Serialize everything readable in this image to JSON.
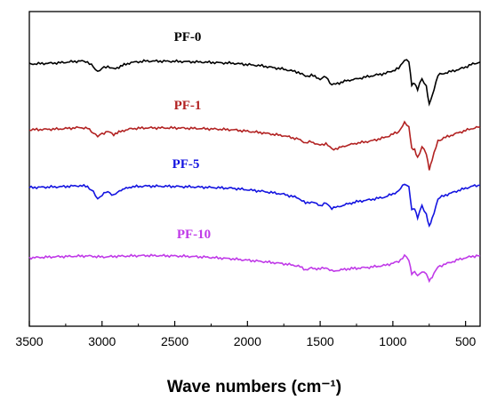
{
  "chart_data": {
    "type": "line",
    "title": "",
    "xlabel": "Wave numbers (cm⁻¹)",
    "ylabel": "",
    "xlim": [
      3500,
      400
    ],
    "x_reversed": true,
    "x_ticks": [
      3500,
      3000,
      2500,
      2000,
      1500,
      1000,
      500
    ],
    "y_ticks": false,
    "grid": false,
    "legend": "inline labels above each curve",
    "y_units": "relative transmittance (stacked offsets)",
    "series": [
      {
        "name": "PF-0",
        "color": "#000000",
        "points": [
          [
            3500,
            0.0
          ],
          [
            3300,
            0.03
          ],
          [
            3150,
            0.08
          ],
          [
            3100,
            0.06
          ],
          [
            3060,
            -0.08
          ],
          [
            3030,
            -0.2
          ],
          [
            3000,
            -0.12
          ],
          [
            2960,
            -0.06
          ],
          [
            2920,
            -0.14
          ],
          [
            2860,
            -0.04
          ],
          [
            2800,
            0.04
          ],
          [
            2700,
            0.08
          ],
          [
            2500,
            0.07
          ],
          [
            2300,
            0.05
          ],
          [
            2100,
            0.02
          ],
          [
            1900,
            -0.05
          ],
          [
            1750,
            -0.14
          ],
          [
            1650,
            -0.22
          ],
          [
            1600,
            -0.33
          ],
          [
            1560,
            -0.3
          ],
          [
            1500,
            -0.4
          ],
          [
            1460,
            -0.34
          ],
          [
            1420,
            -0.56
          ],
          [
            1380,
            -0.52
          ],
          [
            1320,
            -0.45
          ],
          [
            1250,
            -0.4
          ],
          [
            1150,
            -0.32
          ],
          [
            1050,
            -0.25
          ],
          [
            960,
            -0.12
          ],
          [
            920,
            0.12
          ],
          [
            890,
            0.05
          ],
          [
            870,
            -0.55
          ],
          [
            850,
            -0.5
          ],
          [
            830,
            -0.7
          ],
          [
            800,
            -0.38
          ],
          [
            770,
            -0.6
          ],
          [
            750,
            -1.1
          ],
          [
            730,
            -0.85
          ],
          [
            690,
            -0.3
          ],
          [
            650,
            -0.25
          ],
          [
            600,
            -0.2
          ],
          [
            550,
            -0.15
          ],
          [
            500,
            -0.08
          ],
          [
            450,
            0.0
          ],
          [
            400,
            0.05
          ]
        ]
      },
      {
        "name": "PF-1",
        "color": "#b22222",
        "points": [
          [
            3500,
            0.0
          ],
          [
            3300,
            0.02
          ],
          [
            3150,
            0.06
          ],
          [
            3100,
            0.04
          ],
          [
            3060,
            -0.08
          ],
          [
            3030,
            -0.18
          ],
          [
            3000,
            -0.1
          ],
          [
            2960,
            -0.05
          ],
          [
            2920,
            -0.12
          ],
          [
            2860,
            -0.03
          ],
          [
            2800,
            0.03
          ],
          [
            2700,
            0.05
          ],
          [
            2500,
            0.05
          ],
          [
            2300,
            0.03
          ],
          [
            2100,
            0.0
          ],
          [
            1900,
            -0.08
          ],
          [
            1750,
            -0.16
          ],
          [
            1650,
            -0.25
          ],
          [
            1600,
            -0.35
          ],
          [
            1560,
            -0.32
          ],
          [
            1500,
            -0.42
          ],
          [
            1460,
            -0.36
          ],
          [
            1420,
            -0.52
          ],
          [
            1380,
            -0.5
          ],
          [
            1320,
            -0.42
          ],
          [
            1250,
            -0.36
          ],
          [
            1150,
            -0.3
          ],
          [
            1050,
            -0.2
          ],
          [
            960,
            -0.05
          ],
          [
            920,
            0.18
          ],
          [
            890,
            0.1
          ],
          [
            870,
            -0.5
          ],
          [
            850,
            -0.55
          ],
          [
            830,
            -0.75
          ],
          [
            800,
            -0.45
          ],
          [
            770,
            -0.65
          ],
          [
            750,
            -1.05
          ],
          [
            730,
            -0.8
          ],
          [
            690,
            -0.3
          ],
          [
            650,
            -0.22
          ],
          [
            600,
            -0.15
          ],
          [
            550,
            -0.08
          ],
          [
            500,
            -0.02
          ],
          [
            450,
            0.04
          ],
          [
            400,
            0.08
          ]
        ]
      },
      {
        "name": "PF-5",
        "color": "#1414e0",
        "points": [
          [
            3500,
            0.0
          ],
          [
            3300,
            0.02
          ],
          [
            3150,
            0.05
          ],
          [
            3100,
            0.03
          ],
          [
            3060,
            -0.12
          ],
          [
            3030,
            -0.3
          ],
          [
            3000,
            -0.2
          ],
          [
            2960,
            -0.1
          ],
          [
            2920,
            -0.22
          ],
          [
            2880,
            -0.08
          ],
          [
            2800,
            0.02
          ],
          [
            2700,
            0.04
          ],
          [
            2500,
            0.03
          ],
          [
            2300,
            0.01
          ],
          [
            2100,
            -0.02
          ],
          [
            1900,
            -0.1
          ],
          [
            1750,
            -0.18
          ],
          [
            1650,
            -0.28
          ],
          [
            1600,
            -0.42
          ],
          [
            1560,
            -0.38
          ],
          [
            1500,
            -0.48
          ],
          [
            1460,
            -0.42
          ],
          [
            1420,
            -0.55
          ],
          [
            1380,
            -0.52
          ],
          [
            1320,
            -0.45
          ],
          [
            1250,
            -0.38
          ],
          [
            1150,
            -0.32
          ],
          [
            1050,
            -0.25
          ],
          [
            960,
            -0.1
          ],
          [
            920,
            0.12
          ],
          [
            890,
            0.0
          ],
          [
            870,
            -0.6
          ],
          [
            850,
            -0.55
          ],
          [
            830,
            -0.8
          ],
          [
            800,
            -0.5
          ],
          [
            770,
            -0.7
          ],
          [
            750,
            -1.05
          ],
          [
            730,
            -0.85
          ],
          [
            690,
            -0.3
          ],
          [
            650,
            -0.22
          ],
          [
            600,
            -0.15
          ],
          [
            550,
            -0.08
          ],
          [
            500,
            -0.02
          ],
          [
            450,
            0.04
          ],
          [
            400,
            0.06
          ]
        ]
      },
      {
        "name": "PF-10",
        "color": "#c03ae8",
        "points": [
          [
            3500,
            0.0
          ],
          [
            3300,
            0.03
          ],
          [
            3100,
            0.05
          ],
          [
            3000,
            0.02
          ],
          [
            2900,
            0.04
          ],
          [
            2800,
            0.05
          ],
          [
            2700,
            0.06
          ],
          [
            2500,
            0.05
          ],
          [
            2300,
            0.02
          ],
          [
            2100,
            -0.03
          ],
          [
            1900,
            -0.1
          ],
          [
            1750,
            -0.16
          ],
          [
            1650,
            -0.22
          ],
          [
            1600,
            -0.32
          ],
          [
            1560,
            -0.28
          ],
          [
            1500,
            -0.3
          ],
          [
            1460,
            -0.26
          ],
          [
            1420,
            -0.36
          ],
          [
            1380,
            -0.34
          ],
          [
            1320,
            -0.3
          ],
          [
            1250,
            -0.28
          ],
          [
            1150,
            -0.25
          ],
          [
            1050,
            -0.2
          ],
          [
            960,
            -0.1
          ],
          [
            920,
            0.05
          ],
          [
            890,
            -0.05
          ],
          [
            870,
            -0.42
          ],
          [
            850,
            -0.38
          ],
          [
            830,
            -0.5
          ],
          [
            800,
            -0.35
          ],
          [
            770,
            -0.45
          ],
          [
            750,
            -0.62
          ],
          [
            730,
            -0.5
          ],
          [
            690,
            -0.25
          ],
          [
            650,
            -0.18
          ],
          [
            600,
            -0.12
          ],
          [
            550,
            -0.05
          ],
          [
            500,
            0.0
          ],
          [
            450,
            0.04
          ],
          [
            400,
            0.06
          ]
        ]
      }
    ]
  }
}
